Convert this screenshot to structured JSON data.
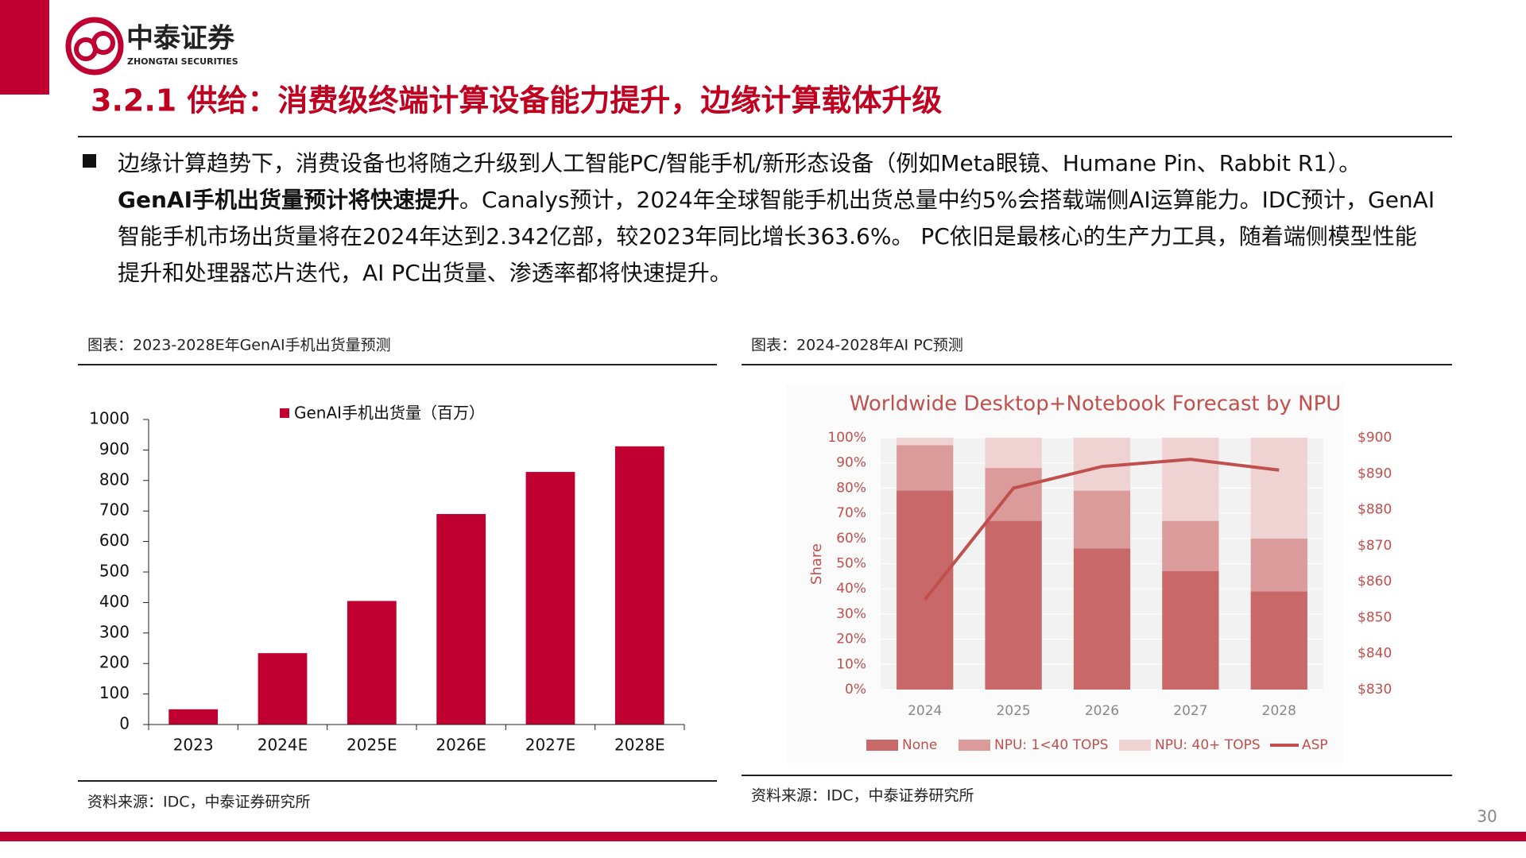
{
  "header": {
    "brand": "中泰证券",
    "brand_en": "ZHONGTAI SECURITIES",
    "title": "3.2.1 供给：消费级终端计算设备能力提升，边缘计算载体升级"
  },
  "body": {
    "paragraph": [
      "边缘计算趋势下，消费设备也将随之升级到人工智能PC/智能手机/新形态设备（例如Meta眼镜、Humane Pin、Rabbit R1）。 ",
      "GenAI手机出货量预计将快速提升",
      "。Canalys预计，2024年全球智能手机出货总量中约5%会搭载端侧AI运算能力。IDC预计，GenAI智能手机市场出货量将在2024年达到2.342亿部，较2023年同比增长363.6%。 PC依旧是最核心的生产力工具，随着端侧模型性能提升和处理器芯片迭代，AI PC出货量、渗透率都将快速提升。"
    ]
  },
  "chart_data": [
    {
      "type": "bar",
      "caption": "图表：2023-2028E年GenAI手机出货量预测",
      "source": "资料来源：IDC，中泰证券研究所",
      "categories": [
        "2023",
        "2024E",
        "2025E",
        "2026E",
        "2027E",
        "2028E"
      ],
      "series": [
        {
          "name": "GenAI手机出货量（百万）",
          "color": "#c00030",
          "values": [
            50,
            234,
            405,
            690,
            828,
            912
          ]
        }
      ],
      "ylim": [
        0,
        1000
      ],
      "yticks": [
        0,
        100,
        200,
        300,
        400,
        500,
        600,
        700,
        800,
        900,
        1000
      ],
      "grid": false
    },
    {
      "type": "bar",
      "stacked": true,
      "caption": "图表：2024-2028年AI PC预测",
      "source": "资料来源：IDC，中泰证券研究所",
      "title": "Worldwide Desktop+Notebook Forecast by NPU",
      "ylabel": "Share",
      "categories": [
        "2024",
        "2025",
        "2026",
        "2027",
        "2028"
      ],
      "series": [
        {
          "name": "None",
          "color": "#c96868",
          "values": [
            79,
            67,
            56,
            47,
            39
          ]
        },
        {
          "name": "NPU: 1<40 TOPS",
          "color": "#db9b9b",
          "values": [
            18,
            21,
            23,
            20,
            21
          ]
        },
        {
          "name": "NPU: 40+ TOPS",
          "color": "#efd2d2",
          "values": [
            3,
            12,
            21,
            33,
            40
          ]
        },
        {
          "name": "ASP",
          "color": "#c0504d",
          "type": "line",
          "axis": "y2",
          "values": [
            855,
            886,
            892,
            894,
            891
          ]
        }
      ],
      "ylim": [
        0,
        100
      ],
      "yticks": [
        {
          "value": 0,
          "label": "0%"
        },
        {
          "value": 10,
          "label": "10%"
        },
        {
          "value": 20,
          "label": "20%"
        },
        {
          "value": 30,
          "label": "30%"
        },
        {
          "value": 40,
          "label": "40%"
        },
        {
          "value": 50,
          "label": "50%"
        },
        {
          "value": 60,
          "label": "60%"
        },
        {
          "value": 70,
          "label": "70%"
        },
        {
          "value": 80,
          "label": "80%"
        },
        {
          "value": 90,
          "label": "90%"
        },
        {
          "value": 100,
          "label": "100%"
        }
      ],
      "y2lim": [
        830,
        900
      ],
      "y2ticks": [
        {
          "value": 830,
          "label": "$830"
        },
        {
          "value": 840,
          "label": "$840"
        },
        {
          "value": 850,
          "label": "$850"
        },
        {
          "value": 860,
          "label": "$860"
        },
        {
          "value": 870,
          "label": "$870"
        },
        {
          "value": 880,
          "label": "$880"
        },
        {
          "value": 890,
          "label": "$890"
        },
        {
          "value": 900,
          "label": "$900"
        }
      ],
      "grid": true
    }
  ],
  "footer": {
    "page": 30
  }
}
